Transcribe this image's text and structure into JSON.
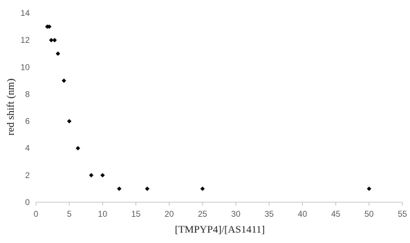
{
  "chart_data": {
    "type": "scatter",
    "title": "",
    "xlabel": "[TMPYP4]/[AS1411]",
    "ylabel": "red shift (nm)",
    "xlim": [
      0,
      55
    ],
    "ylim": [
      0,
      14
    ],
    "x_ticks": [
      0,
      5,
      10,
      15,
      20,
      25,
      30,
      35,
      40,
      45,
      50,
      55
    ],
    "y_ticks": [
      0,
      2,
      4,
      6,
      8,
      10,
      12,
      14
    ],
    "grid": false,
    "legend": "none",
    "marker": "diamond",
    "marker_color": "#000000",
    "points": [
      {
        "x": 1.7,
        "y": 13
      },
      {
        "x": 2.0,
        "y": 13
      },
      {
        "x": 2.3,
        "y": 12
      },
      {
        "x": 2.8,
        "y": 12
      },
      {
        "x": 3.3,
        "y": 11
      },
      {
        "x": 4.2,
        "y": 9
      },
      {
        "x": 5.0,
        "y": 6
      },
      {
        "x": 6.3,
        "y": 4
      },
      {
        "x": 8.3,
        "y": 2
      },
      {
        "x": 10.0,
        "y": 2
      },
      {
        "x": 12.5,
        "y": 1
      },
      {
        "x": 16.7,
        "y": 1
      },
      {
        "x": 25.0,
        "y": 1
      },
      {
        "x": 50.0,
        "y": 1
      }
    ]
  }
}
